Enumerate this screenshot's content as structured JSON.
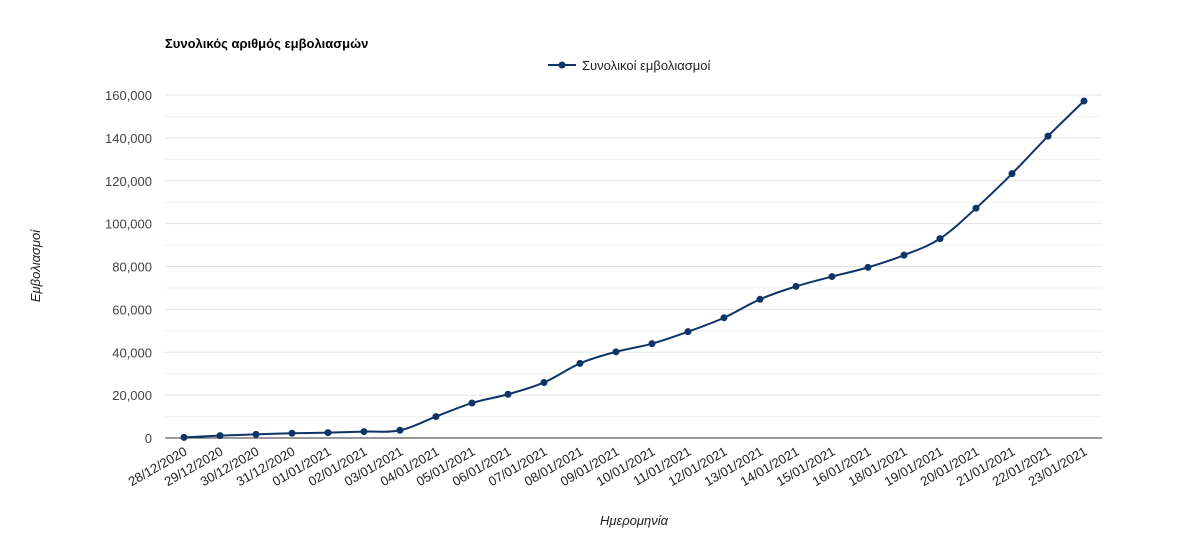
{
  "chart_data": {
    "type": "line",
    "title": "Συνολικός αριθμός εμβολιασμών",
    "xlabel": "Ημερομηνία",
    "ylabel": "Εμβολιασμοί",
    "ylim": [
      0,
      160000
    ],
    "yticks": [
      0,
      20000,
      40000,
      60000,
      80000,
      100000,
      120000,
      140000,
      160000
    ],
    "ytick_labels": [
      "0",
      "20,000",
      "40,000",
      "60,000",
      "80,000",
      "100,000",
      "120,000",
      "140,000",
      "160,000"
    ],
    "grid": true,
    "legend_position": "top",
    "categories": [
      "28/12/2020",
      "29/12/2020",
      "30/12/2020",
      "31/12/2020",
      "01/01/2021",
      "02/01/2021",
      "03/01/2021",
      "04/01/2021",
      "05/01/2021",
      "06/01/2021",
      "07/01/2021",
      "08/01/2021",
      "09/01/2021",
      "10/01/2021",
      "11/01/2021",
      "12/01/2021",
      "13/01/2021",
      "14/01/2021",
      "15/01/2021",
      "16/01/2021",
      "18/01/2021",
      "19/01/2021",
      "20/01/2021",
      "21/01/2021",
      "22/01/2021",
      "23/01/2021"
    ],
    "series": [
      {
        "name": "Συνολικοί εμβολιασμοί",
        "color": "#0f3468",
        "values": [
          300,
          1100,
          1700,
          2200,
          2500,
          3000,
          3600,
          10000,
          16300,
          20400,
          25900,
          34800,
          40200,
          44000,
          49600,
          56100,
          64700,
          70700,
          75300,
          79600,
          85300,
          93000,
          107200,
          123300,
          140800,
          157200
        ]
      }
    ]
  }
}
